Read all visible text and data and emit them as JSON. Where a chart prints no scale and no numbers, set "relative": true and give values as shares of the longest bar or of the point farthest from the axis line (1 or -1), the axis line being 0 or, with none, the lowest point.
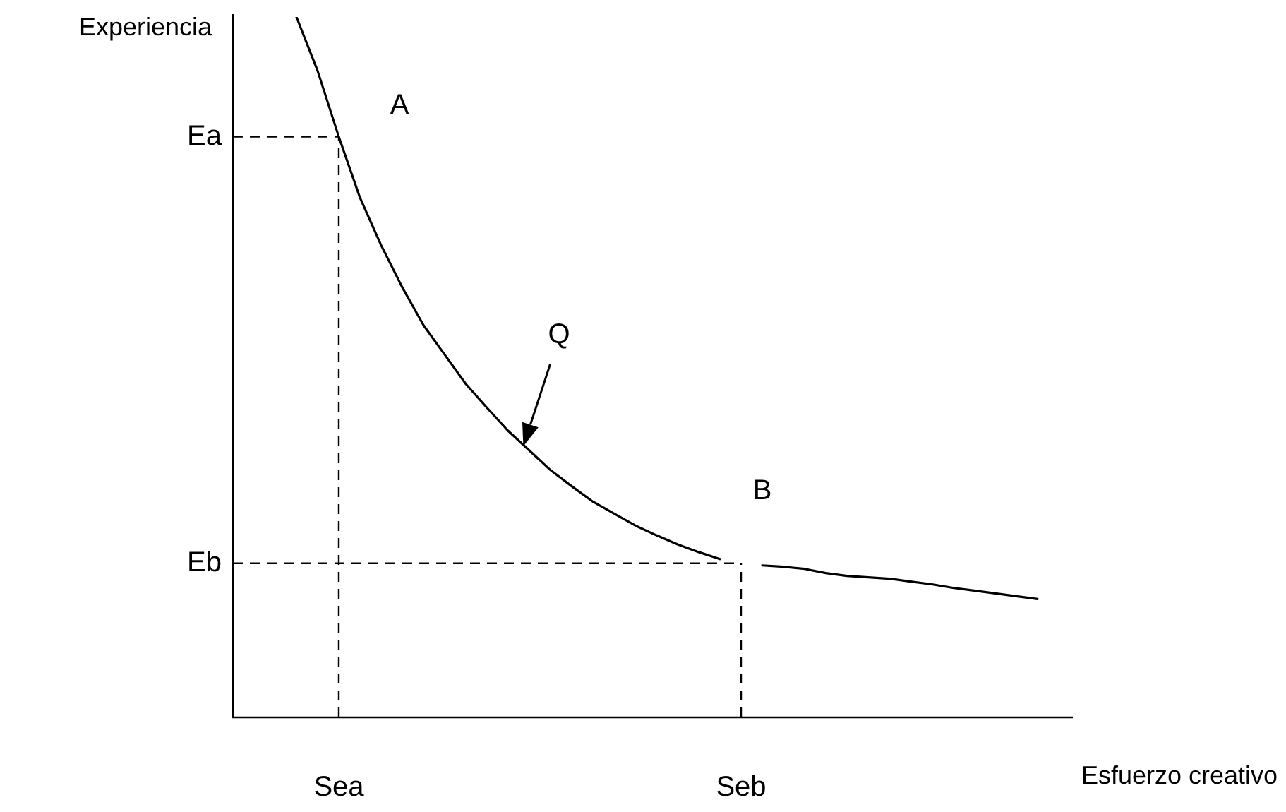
{
  "chart_data": {
    "type": "line",
    "relative": true,
    "xlabel": "Esfuerzo creativo",
    "ylabel": "Experiencia",
    "tick_labels": "x",
    "legend": false,
    "marker": "none",
    "line_style": "solid",
    "categories": [
      null,
      null,
      null,
      null,
      null,
      "Sea",
      null,
      null,
      null,
      null,
      null,
      null,
      null,
      null,
      null,
      null,
      null,
      null,
      null,
      null,
      null,
      null,
      null,
      null,
      "Seb",
      null,
      null,
      null,
      null,
      null,
      null,
      null,
      null,
      null,
      null,
      null,
      null,
      null,
      null,
      null,
      null
    ],
    "series": [
      {
        "color": "#000000",
        "values": [
          null,
          null,
          null,
          1.0,
          0.923,
          0.829,
          0.742,
          0.674,
          0.614,
          0.56,
          0.518,
          0.476,
          0.442,
          0.409,
          0.381,
          0.353,
          0.33,
          0.308,
          0.291,
          0.274,
          0.26,
          0.247,
          0.236,
          0.226,
          null,
          0.217,
          0.215,
          0.212,
          0.206,
          0.202,
          0.2,
          0.198,
          0.194,
          0.19,
          0.185,
          0.181,
          0.177,
          0.173,
          0.169,
          null,
          null
        ]
      }
    ],
    "ref_lines": [
      {
        "axis": "y",
        "value": 0.829,
        "label": "Ea",
        "line_style": "dashed",
        "color": "#000000"
      },
      {
        "axis": "y",
        "value": 0.22,
        "label": "Eb",
        "line_style": "dashed",
        "color": "#000000"
      },
      {
        "axis": "x",
        "value": "Sea",
        "line_style": "dashed",
        "color": "#000000"
      },
      {
        "axis": "x",
        "value": "Seb",
        "line_style": "dashed",
        "color": "#000000"
      }
    ],
    "annotations": [
      {
        "text": "A",
        "x": "Sea",
        "y": 0.829
      },
      "Q",
      {
        "text": "B",
        "x": "Seb",
        "y": 0.22
      }
    ]
  }
}
